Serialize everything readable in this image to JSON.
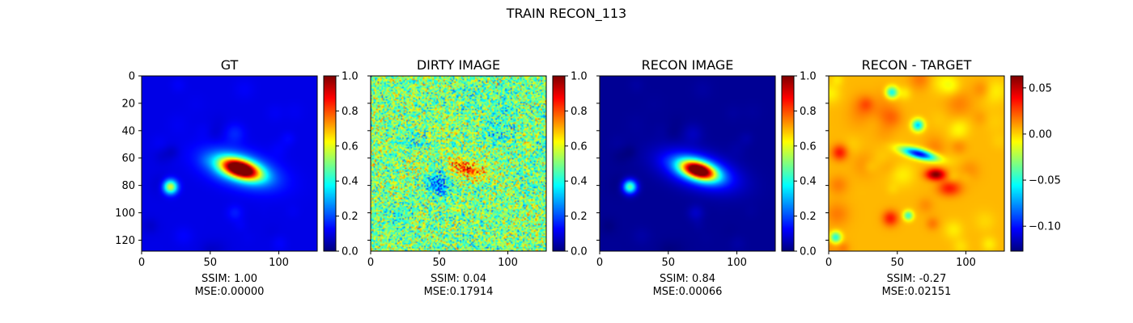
{
  "figure": {
    "suptitle": "TRAIN RECON_113"
  },
  "chart_data": [
    {
      "type": "heatmap",
      "title": "GT",
      "xlabel": [
        "SSIM: 1.00",
        "MSE:0.00000"
      ],
      "image_size": [
        128,
        128
      ],
      "xlim": [
        0,
        128
      ],
      "ylim": [
        128,
        0
      ],
      "x_ticks": [
        0,
        50,
        100
      ],
      "y_ticks": [
        0,
        20,
        40,
        60,
        80,
        100,
        120
      ],
      "colormap": "jet",
      "colorbar": {
        "range": [
          0.0,
          1.0
        ],
        "ticks": [
          "0.0",
          "0.2",
          "0.4",
          "0.6",
          "0.8",
          "1.0"
        ]
      },
      "features": [
        {
          "kind": "elliptical source",
          "center": [
            72,
            68
          ],
          "peak": 1.0
        },
        {
          "kind": "compact source",
          "center": [
            21,
            81
          ],
          "peak": 0.6
        }
      ],
      "background_level": 0.1,
      "grid": false
    },
    {
      "type": "heatmap",
      "title": "DIRTY IMAGE",
      "xlabel": [
        "SSIM: 0.04",
        "MSE:0.17914"
      ],
      "image_size": [
        128,
        128
      ],
      "xlim": [
        0,
        128
      ],
      "ylim": [
        128,
        0
      ],
      "x_ticks": [
        0,
        50,
        100
      ],
      "colormap": "jet",
      "colorbar": {
        "range": [
          0.0,
          1.0
        ],
        "ticks": [
          "0.0",
          "0.2",
          "0.4",
          "0.6",
          "0.8",
          "1.0"
        ]
      },
      "features": [
        {
          "kind": "noisy residual",
          "center": [
            70,
            68
          ],
          "peak": 0.85
        },
        {
          "kind": "negative blob",
          "center": [
            50,
            78
          ],
          "peak": 0.2
        }
      ],
      "background_level": 0.5,
      "grid": false
    },
    {
      "type": "heatmap",
      "title": "RECON IMAGE",
      "xlabel": [
        "SSIM: 0.84",
        "MSE:0.00066"
      ],
      "image_size": [
        128,
        128
      ],
      "xlim": [
        0,
        128
      ],
      "ylim": [
        128,
        0
      ],
      "x_ticks": [
        0,
        50,
        100
      ],
      "colormap": "jet",
      "colorbar": {
        "range": [
          0.0,
          1.0
        ],
        "ticks": [
          "0.0",
          "0.2",
          "0.4",
          "0.6",
          "0.8",
          "1.0"
        ]
      },
      "features": [
        {
          "kind": "elliptical source",
          "center": [
            72,
            69
          ],
          "peak": 0.98
        },
        {
          "kind": "compact source",
          "center": [
            22,
            81
          ],
          "peak": 0.5
        }
      ],
      "background_level": 0.05,
      "grid": false
    },
    {
      "type": "heatmap",
      "title": "RECON - TARGET",
      "xlabel": [
        "SSIM: -0.27",
        "MSE:0.02151"
      ],
      "image_size": [
        128,
        128
      ],
      "xlim": [
        0,
        128
      ],
      "ylim": [
        128,
        0
      ],
      "x_ticks": [
        0,
        50,
        100
      ],
      "colormap": "jet",
      "colorbar": {
        "range": [
          -0.127,
          0.063
        ],
        "ticks": [
          "0.05",
          "0.00",
          "−0.05",
          "−0.10"
        ],
        "tick_values": [
          0.05,
          0.0,
          -0.05,
          -0.1
        ]
      },
      "features": [
        {
          "kind": "negative residual",
          "center": [
            68,
            58
          ],
          "value": -0.12
        },
        {
          "kind": "positive residual",
          "center": [
            78,
            72
          ],
          "value": 0.06
        }
      ],
      "background_level": 0.0,
      "grid": false
    }
  ]
}
